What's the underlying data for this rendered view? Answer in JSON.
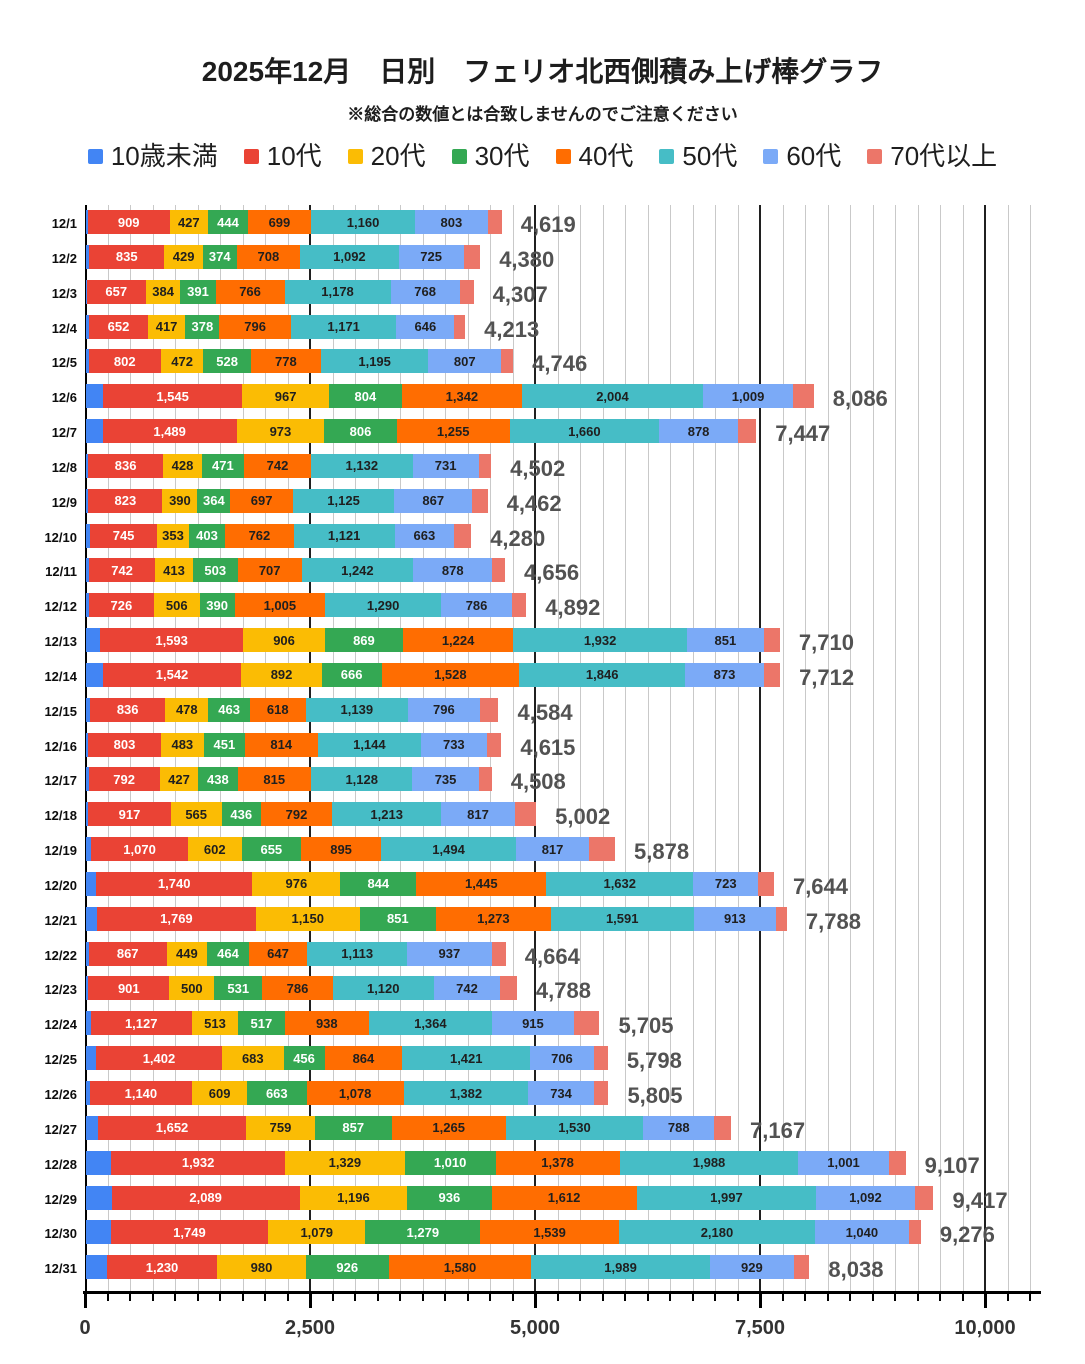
{
  "title": "2025年12月　日別　フェリオ北西側積み上げ棒グラフ",
  "subtitle": "※総合の数値とは合致しませんのでご注意ください",
  "legend": [
    {
      "label": "10歳未満",
      "color": "#4285f4"
    },
    {
      "label": "10代",
      "color": "#ea4335"
    },
    {
      "label": "20代",
      "color": "#fbbc04"
    },
    {
      "label": "30代",
      "color": "#34a853"
    },
    {
      "label": "40代",
      "color": "#ff6d01"
    },
    {
      "label": "50代",
      "color": "#46bdc6"
    },
    {
      "label": "60代",
      "color": "#7baaf7"
    },
    {
      "label": "70代以上",
      "color": "#ec7669"
    }
  ],
  "chart_data": {
    "type": "bar",
    "orientation": "horizontal-stacked",
    "series": [
      "10歳未満",
      "10代",
      "20代",
      "30代",
      "40代",
      "50代",
      "60代",
      "70代以上"
    ],
    "series_colors": [
      "#4285f4",
      "#ea4335",
      "#fbbc04",
      "#34a853",
      "#ff6d01",
      "#46bdc6",
      "#7baaf7",
      "#ec7669"
    ],
    "labeled_series_indices": [
      1,
      2,
      3,
      4,
      5,
      6
    ],
    "unlabeled_series_indices_estimated": [
      0,
      7
    ],
    "segment_label_colors": [
      "",
      "#ffffff",
      "#1f1f1f",
      "#ffffff",
      "#1f1f1f",
      "#1f1f1f",
      "#1f1f1f",
      ""
    ],
    "categories": [
      "12/1",
      "12/2",
      "12/3",
      "12/4",
      "12/5",
      "12/6",
      "12/7",
      "12/8",
      "12/9",
      "12/10",
      "12/11",
      "12/12",
      "12/13",
      "12/14",
      "12/15",
      "12/16",
      "12/17",
      "12/18",
      "12/19",
      "12/20",
      "12/21",
      "12/22",
      "12/23",
      "12/24",
      "12/25",
      "12/26",
      "12/27",
      "12/28",
      "12/29",
      "12/30",
      "12/31"
    ],
    "rows": [
      {
        "date": "12/1",
        "values": [
          20,
          909,
          427,
          444,
          699,
          1160,
          803,
          157
        ],
        "total": 4619
      },
      {
        "date": "12/2",
        "values": [
          35,
          835,
          429,
          374,
          708,
          1092,
          725,
          182
        ],
        "total": 4380
      },
      {
        "date": "12/3",
        "values": [
          8,
          657,
          384,
          391,
          766,
          1178,
          768,
          155
        ],
        "total": 4307
      },
      {
        "date": "12/4",
        "values": [
          35,
          652,
          417,
          378,
          796,
          1171,
          646,
          118
        ],
        "total": 4213
      },
      {
        "date": "12/5",
        "values": [
          30,
          802,
          472,
          528,
          778,
          1195,
          807,
          134
        ],
        "total": 4746
      },
      {
        "date": "12/6",
        "values": [
          190,
          1545,
          967,
          804,
          1342,
          2004,
          1009,
          225
        ],
        "total": 8086
      },
      {
        "date": "12/7",
        "values": [
          185,
          1489,
          973,
          806,
          1255,
          1660,
          878,
          201
        ],
        "total": 7447
      },
      {
        "date": "12/8",
        "values": [
          22,
          836,
          428,
          471,
          742,
          1132,
          731,
          140
        ],
        "total": 4502
      },
      {
        "date": "12/9",
        "values": [
          26,
          823,
          390,
          364,
          697,
          1125,
          867,
          170
        ],
        "total": 4462
      },
      {
        "date": "12/10",
        "values": [
          45,
          745,
          353,
          403,
          762,
          1121,
          663,
          188
        ],
        "total": 4280
      },
      {
        "date": "12/11",
        "values": [
          30,
          742,
          413,
          503,
          707,
          1242,
          878,
          141
        ],
        "total": 4656
      },
      {
        "date": "12/12",
        "values": [
          30,
          726,
          506,
          390,
          1005,
          1290,
          786,
          159
        ],
        "total": 4892
      },
      {
        "date": "12/13",
        "values": [
          155,
          1593,
          906,
          869,
          1224,
          1932,
          851,
          180
        ],
        "total": 7710
      },
      {
        "date": "12/14",
        "values": [
          185,
          1542,
          892,
          666,
          1528,
          1846,
          873,
          180
        ],
        "total": 7712
      },
      {
        "date": "12/15",
        "values": [
          45,
          836,
          478,
          463,
          618,
          1139,
          796,
          209
        ],
        "total": 4584
      },
      {
        "date": "12/16",
        "values": [
          26,
          803,
          483,
          451,
          814,
          1144,
          733,
          161
        ],
        "total": 4615
      },
      {
        "date": "12/17",
        "values": [
          28,
          792,
          427,
          438,
          815,
          1128,
          735,
          145
        ],
        "total": 4508
      },
      {
        "date": "12/18",
        "values": [
          25,
          917,
          565,
          436,
          792,
          1213,
          817,
          237
        ],
        "total": 5002
      },
      {
        "date": "12/19",
        "values": [
          60,
          1070,
          602,
          655,
          895,
          1494,
          817,
          285
        ],
        "total": 5878
      },
      {
        "date": "12/20",
        "values": [
          110,
          1740,
          976,
          844,
          1445,
          1632,
          723,
          174
        ],
        "total": 7644
      },
      {
        "date": "12/21",
        "values": [
          120,
          1769,
          1150,
          851,
          1273,
          1591,
          913,
          121
        ],
        "total": 7788
      },
      {
        "date": "12/22",
        "values": [
          30,
          867,
          449,
          464,
          647,
          1113,
          937,
          157
        ],
        "total": 4664
      },
      {
        "date": "12/23",
        "values": [
          25,
          901,
          500,
          531,
          786,
          1120,
          742,
          183
        ],
        "total": 4788
      },
      {
        "date": "12/24",
        "values": [
          50,
          1127,
          513,
          517,
          938,
          1364,
          915,
          281
        ],
        "total": 5705
      },
      {
        "date": "12/25",
        "values": [
          110,
          1402,
          683,
          456,
          864,
          1421,
          706,
          156
        ],
        "total": 5798
      },
      {
        "date": "12/26",
        "values": [
          40,
          1140,
          609,
          663,
          1078,
          1382,
          734,
          159
        ],
        "total": 5805
      },
      {
        "date": "12/27",
        "values": [
          130,
          1652,
          759,
          857,
          1265,
          1530,
          788,
          186
        ],
        "total": 7167
      },
      {
        "date": "12/28",
        "values": [
          280,
          1932,
          1329,
          1010,
          1378,
          1988,
          1001,
          189
        ],
        "total": 9107
      },
      {
        "date": "12/29",
        "values": [
          285,
          2089,
          1196,
          936,
          1612,
          1997,
          1092,
          210
        ],
        "total": 9417
      },
      {
        "date": "12/30",
        "values": [
          275,
          1749,
          1079,
          1279,
          1539,
          2180,
          1040,
          135
        ],
        "total": 9276
      },
      {
        "date": "12/31",
        "values": [
          230,
          1230,
          980,
          926,
          1580,
          1989,
          929,
          174
        ],
        "total": 8038
      }
    ],
    "x_axis": {
      "min": 0,
      "max": 10000,
      "major_ticks": [
        0,
        2500,
        5000,
        7500,
        10000
      ],
      "major_tick_labels": [
        "0",
        "2,500",
        "5,000",
        "7,500",
        "10,000"
      ],
      "minor_step": 250,
      "grid": true,
      "legend_position": "top"
    }
  }
}
